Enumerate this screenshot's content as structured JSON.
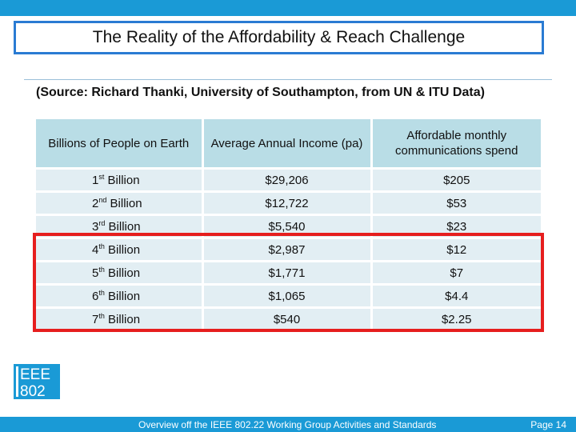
{
  "title": "The Reality of the Affordability & Reach Challenge",
  "source": "(Source: Richard Thanki, University of Southampton, from UN & ITU Data)",
  "table": {
    "headers": [
      "Billions of People on Earth",
      "Average Annual Income (pa)",
      "Affordable monthly communications spend"
    ],
    "rows": [
      {
        "num": "1",
        "suffix": "st",
        "label": " Billion",
        "income": "$29,206",
        "spend": "$205"
      },
      {
        "num": "2",
        "suffix": "nd",
        "label": " Billion",
        "income": "$12,722",
        "spend": "$53"
      },
      {
        "num": "3",
        "suffix": "rd",
        "label": " Billion",
        "income": "$5,540",
        "spend": "$23"
      },
      {
        "num": "4",
        "suffix": "th",
        "label": " Billion",
        "income": "$2,987",
        "spend": "$12"
      },
      {
        "num": "5",
        "suffix": "th",
        "label": " Billion",
        "income": "$1,771",
        "spend": "$7"
      },
      {
        "num": "6",
        "suffix": "th",
        "label": " Billion",
        "income": "$1,065",
        "spend": "$4.4"
      },
      {
        "num": "7",
        "suffix": "th",
        "label": " Billion",
        "income": "$540",
        "spend": "$2.25"
      }
    ]
  },
  "logo": {
    "line1": "EEE",
    "line2": "802"
  },
  "footer": {
    "text": "Overview off the IEEE 802.22 Working Group Activities and Standards",
    "page": "Page 14"
  },
  "colors": {
    "accent": "#1a9ad6",
    "highlight": "#e61e1e",
    "header_bg": "#b9dde6",
    "cell_bg": "#e2eef3"
  }
}
